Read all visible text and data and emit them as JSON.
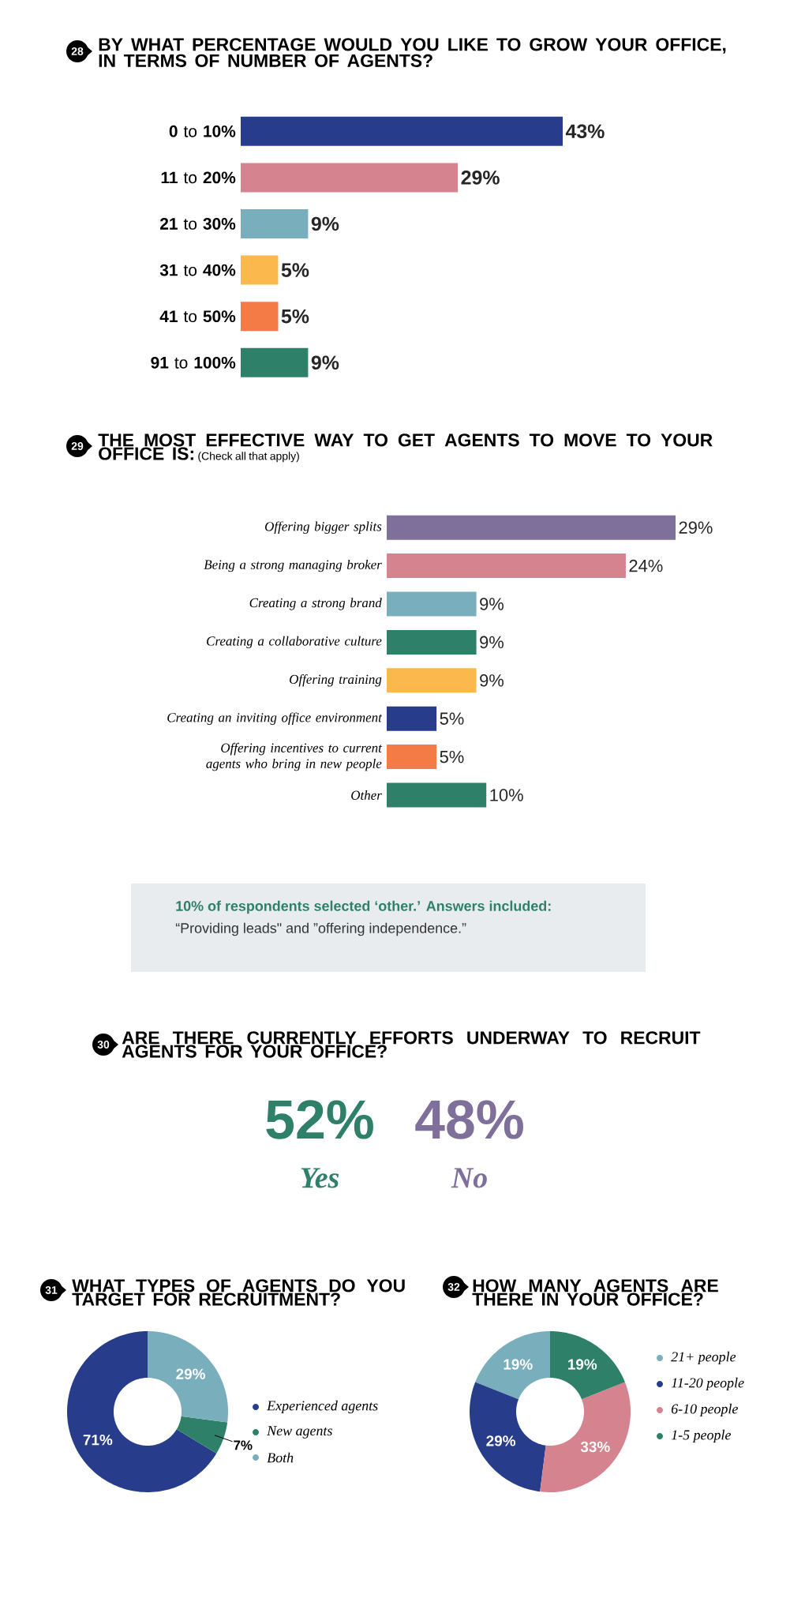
{
  "chart_data": [
    {
      "type": "bar",
      "orientation": "horizontal",
      "title": "BY WHAT PERCENTAGE WOULD YOU LIKE TO GROW YOUR OFFICE, IN TERMS OF NUMBER OF AGENTS?",
      "annotations": [
        "28"
      ],
      "categories": [
        "**0** to **10%**",
        "**11** to **20%**",
        "**21** to **30%**",
        "**31** to **40%**",
        "**41** to **50%**",
        "**91** to **100%**"
      ],
      "values": [
        43,
        29,
        9,
        5,
        5,
        9
      ],
      "value_labels": [
        "43%",
        "29%",
        "9%",
        "5%",
        "5%",
        "9%"
      ],
      "colors": [
        "#283c8c",
        "#d4838f",
        "#79aebc",
        "#fbb84d",
        "#f47b45",
        "#2f8068"
      ]
    },
    {
      "type": "bar",
      "orientation": "horizontal",
      "title": "THE MOST EFFECTIVE WAY TO GET AGENTS TO MOVE TO YOUR OFFICE IS:",
      "subtitle": "(Check all that apply)",
      "annotations": [
        "29",
        "10% of respondents selected ‘other.’ Answers included:",
        "“Providing leads\" and ”offering independence.”"
      ],
      "categories": [
        "Offering bigger splits",
        "Being a strong managing broker",
        "Creating a strong brand",
        "Creating a collaborative culture",
        "Offering training",
        "Creating an inviting office environment",
        "Offering incentives to current agents who bring in new people",
        "Other"
      ],
      "values": [
        29,
        24,
        9,
        9,
        9,
        5,
        5,
        10
      ],
      "value_labels": [
        "29%",
        "24%",
        "9%",
        "9%",
        "9%",
        "5%",
        "5%",
        "10%"
      ],
      "colors": [
        "#7f6f9b",
        "#d4838f",
        "#79aebc",
        "#2f8068",
        "#fbb84d",
        "#283c8c",
        "#f47b45",
        "#2f8068"
      ]
    },
    {
      "type": "other",
      "title": "ARE THERE CURRENTLY EFFORTS UNDERWAY TO RECRUIT AGENTS FOR YOUR OFFICE?",
      "annotations": [
        "30"
      ],
      "categories": [
        "Yes",
        "No"
      ],
      "values": [
        52,
        48
      ],
      "value_labels": [
        "52%",
        "48%"
      ],
      "colors": [
        "#2f8068",
        "#7f6f9b"
      ]
    },
    {
      "type": "donut",
      "title": "WHAT TYPES OF AGENTS DO YOU TARGET FOR RECRUITMENT?",
      "annotations": [
        "31"
      ],
      "categories": [
        "Experienced agents",
        "New agents",
        "Both"
      ],
      "values": [
        71,
        7,
        29
      ],
      "value_labels": [
        "71%",
        "7%",
        "29%"
      ],
      "colors": [
        "#283c8c",
        "#2f8068",
        "#79aebc"
      ],
      "legend": "right"
    },
    {
      "type": "donut",
      "title": "HOW MANY AGENTS ARE THERE IN YOUR OFFICE?",
      "annotations": [
        "32"
      ],
      "categories": [
        "21+ people",
        "11-20 people",
        "6-10 people",
        "1-5 people"
      ],
      "values": [
        19,
        29,
        33,
        19
      ],
      "value_labels": [
        "19%",
        "29%",
        "33%",
        "19%"
      ],
      "colors": [
        "#79aebc",
        "#283c8c",
        "#d4838f",
        "#2f8068"
      ],
      "legend": "right"
    }
  ]
}
